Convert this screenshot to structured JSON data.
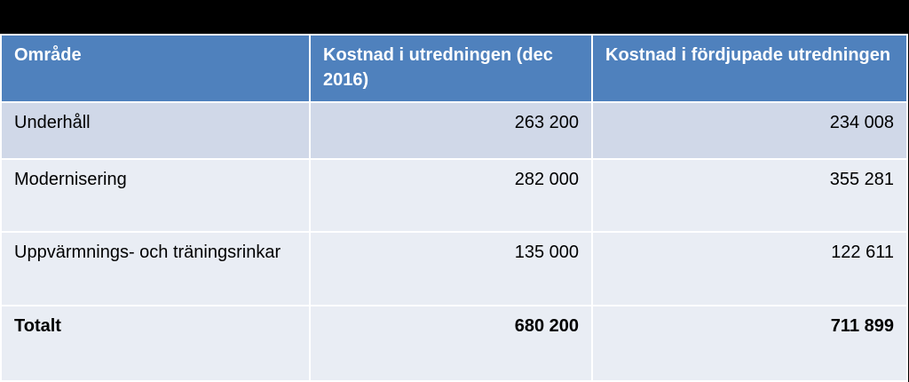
{
  "table": {
    "headers": [
      "Område",
      "Kostnad i utredningen (dec 2016)",
      "Kostnad i fördjupade utredningen"
    ],
    "rows": [
      {
        "area": "Underhåll",
        "cost_2016": "263 200",
        "cost_deep": "234 008"
      },
      {
        "area": "Modernisering",
        "cost_2016": "282 000",
        "cost_deep": "355 281"
      },
      {
        "area": "Uppvärmnings- och träningsrinkar",
        "cost_2016": "135 000",
        "cost_deep": "122 611"
      },
      {
        "area": "Totalt",
        "cost_2016": "680 200",
        "cost_deep": "711 899"
      }
    ]
  },
  "colors": {
    "header_bg": "#4f81bd",
    "row_dark": "#d0d8e8",
    "row_light": "#e9edf4",
    "page_bg": "#000000"
  }
}
